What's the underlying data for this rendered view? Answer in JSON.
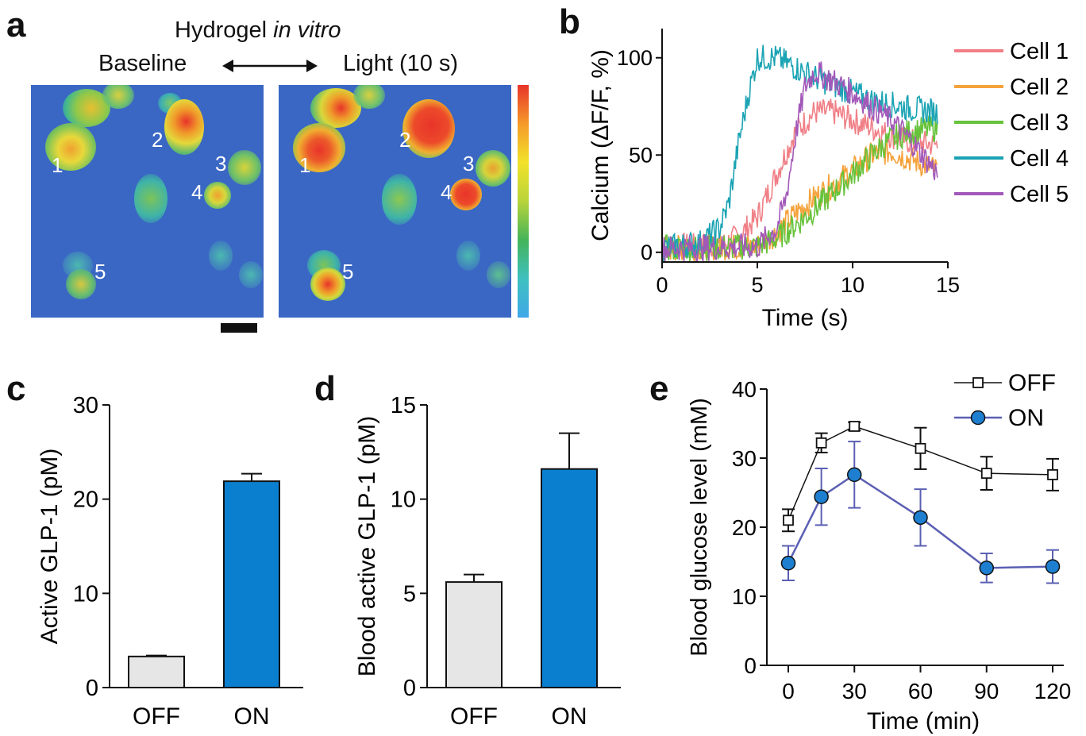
{
  "panels": {
    "a": {
      "letter": "a",
      "title_prefix": "Hydrogel ",
      "title_italic": "in vitro",
      "left_label": "Baseline",
      "right_label": "Light (10 s)",
      "cell_labels": [
        "1",
        "2",
        "3",
        "4",
        "5"
      ],
      "colormap": [
        "#3fa8e8",
        "#3fc0c0",
        "#44b45a",
        "#b8d43a",
        "#f2e22a",
        "#f59a2a",
        "#e8342a"
      ]
    },
    "b": {
      "letter": "b",
      "legend": [
        "Cell 1",
        "Cell 2",
        "Cell 3",
        "Cell 4",
        "Cell 5"
      ]
    },
    "c": {
      "letter": "c"
    },
    "d": {
      "letter": "d"
    },
    "e": {
      "letter": "e"
    }
  },
  "colors": {
    "off_bar": "#e6e6e6",
    "on_bar": "#0a7fcf",
    "on_line": "#5b5fb3",
    "on_marker": "#1e7fd0",
    "cell1": "#f07f86",
    "cell2": "#f5a23a",
    "cell3": "#66c23a",
    "cell4": "#1aa3b4",
    "cell5": "#a258b8"
  },
  "chart_data": [
    {
      "id": "b",
      "type": "line",
      "xlabel": "Time (s)",
      "ylabel": "Calcium (ΔF/F, %)",
      "xlim": [
        0,
        15
      ],
      "ylim": [
        -5,
        115
      ],
      "xticks": [
        0,
        5,
        10,
        15
      ],
      "yticks": [
        0,
        50,
        100
      ],
      "legend_position": "right",
      "series": [
        {
          "name": "Cell 1",
          "x": [
            0,
            3,
            4,
            5,
            6,
            7,
            8,
            9,
            10,
            11,
            12,
            13,
            14.5
          ],
          "values": [
            3,
            3,
            8,
            18,
            40,
            62,
            72,
            72,
            68,
            64,
            60,
            57,
            55
          ]
        },
        {
          "name": "Cell 2",
          "x": [
            0,
            5,
            6,
            7,
            8,
            9,
            10,
            11,
            12,
            13,
            14.5
          ],
          "values": [
            2,
            3,
            10,
            20,
            28,
            35,
            42,
            50,
            52,
            48,
            42
          ]
        },
        {
          "name": "Cell 3",
          "x": [
            0,
            5,
            6,
            7,
            8,
            9,
            10,
            11,
            12,
            13,
            14.5
          ],
          "values": [
            2,
            3,
            7,
            14,
            22,
            31,
            40,
            50,
            58,
            62,
            64
          ]
        },
        {
          "name": "Cell 4",
          "x": [
            0,
            2,
            3,
            3.5,
            4,
            4.5,
            5,
            6,
            7,
            8,
            9,
            10,
            11,
            12,
            13,
            14.5
          ],
          "values": [
            2,
            5,
            12,
            25,
            55,
            80,
            100,
            100,
            95,
            90,
            86,
            82,
            78,
            76,
            74,
            72
          ]
        },
        {
          "name": "Cell 5",
          "x": [
            0,
            5,
            6,
            6.5,
            7,
            7.5,
            8,
            9,
            10,
            11,
            12,
            13,
            14.5
          ],
          "values": [
            2,
            3,
            12,
            28,
            60,
            85,
            93,
            88,
            82,
            75,
            68,
            58,
            40
          ]
        }
      ]
    },
    {
      "id": "c",
      "type": "bar",
      "categories": [
        "OFF",
        "ON"
      ],
      "values": [
        3.3,
        21.9
      ],
      "errors": [
        0.1,
        0.8
      ],
      "ylabel": "Active GLP-1 (pM)",
      "ylim": [
        0,
        30
      ],
      "yticks": [
        0,
        10,
        20,
        30
      ]
    },
    {
      "id": "d",
      "type": "bar",
      "categories": [
        "OFF",
        "ON"
      ],
      "values": [
        5.6,
        11.6
      ],
      "errors": [
        0.4,
        1.9
      ],
      "ylabel": "Blood active GLP-1 (pM)",
      "ylim": [
        0,
        15
      ],
      "yticks": [
        0,
        5,
        10,
        15
      ]
    },
    {
      "id": "e",
      "type": "line",
      "x": [
        0,
        15,
        30,
        60,
        90,
        120
      ],
      "xticks": [
        0,
        30,
        60,
        90,
        120
      ],
      "yticks": [
        0,
        10,
        20,
        30,
        40
      ],
      "xlabel": "Time (min)",
      "ylabel": "Blood glucose level (mM)",
      "ylim": [
        0,
        40
      ],
      "legend_position": "top-right",
      "series": [
        {
          "name": "OFF",
          "values": [
            21.0,
            32.2,
            34.6,
            31.4,
            27.8,
            27.6
          ],
          "errors": [
            1.6,
            1.4,
            0.6,
            3.0,
            2.4,
            2.3
          ]
        },
        {
          "name": "ON",
          "values": [
            14.8,
            24.4,
            27.6,
            21.4,
            14.1,
            14.3
          ],
          "errors": [
            2.5,
            4.1,
            4.8,
            4.1,
            2.1,
            2.4
          ]
        }
      ]
    }
  ]
}
